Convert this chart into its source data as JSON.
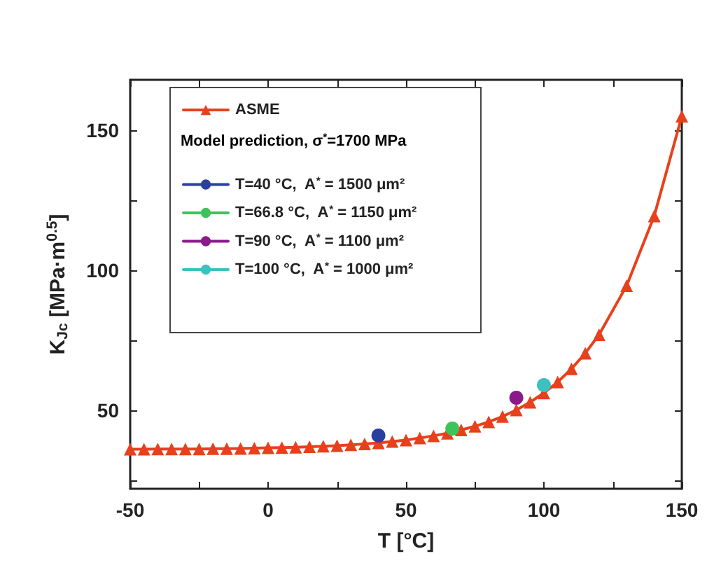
{
  "chart_data": {
    "type": "line",
    "xlabel": "T [°C]",
    "ylabel": "K$_{Jc}$ [MPa·m$^{0.5}$]",
    "legend_title": "Model prediction, σ$^{*}$=1700 MPa",
    "x": [
      -50,
      -45,
      -40,
      -35,
      -30,
      -25,
      -20,
      -15,
      -10,
      -5,
      0,
      5,
      10,
      15,
      20,
      25,
      30,
      35,
      40,
      45,
      50,
      55,
      60,
      65,
      70,
      75,
      80,
      85,
      90,
      95,
      100,
      105,
      110,
      115,
      120,
      130,
      140,
      150
    ],
    "series": [
      {
        "name": "ASME",
        "color": "#e8401c",
        "marker": "triangle",
        "values": [
          36.1,
          36.1,
          36.2,
          36.2,
          36.2,
          36.2,
          36.3,
          36.3,
          36.4,
          36.5,
          36.6,
          36.7,
          36.8,
          37.0,
          37.2,
          37.4,
          37.7,
          38.0,
          38.4,
          38.9,
          39.4,
          40.1,
          40.9,
          41.8,
          43.0,
          44.3,
          45.9,
          47.8,
          50.1,
          52.9,
          56.2,
          60.1,
          64.8,
          70.4,
          77.0,
          94.5,
          119.4,
          155.0
        ]
      },
      {
        "name": "T=40 °C,  A$^{*}$ = 1500 μm²",
        "color": "#2b3f9e",
        "marker": "circle",
        "x": [
          40
        ],
        "values": [
          41
        ]
      },
      {
        "name": "T=66.8 °C,  A$^{*}$ = 1150 μm²",
        "color": "#3cc45a",
        "marker": "circle",
        "x": [
          66.8
        ],
        "values": [
          43.5
        ]
      },
      {
        "name": "T=90 °C,  A$^{*}$ = 1100 μm²",
        "color": "#8a1a8a",
        "marker": "circle",
        "x": [
          90
        ],
        "values": [
          54.5
        ]
      },
      {
        "name": "T=100 °C,  A$^{*}$ = 1000 μm²",
        "color": "#3cc0c0",
        "marker": "circle",
        "x": [
          100
        ],
        "values": [
          59
        ]
      }
    ],
    "xlim": [
      -50,
      150
    ],
    "xticks": [
      -50,
      {
        "value": -25,
        "label": null
      },
      0,
      {
        "value": 25,
        "label": null
      },
      50,
      {
        "value": 75,
        "label": null
      },
      100,
      {
        "value": 125,
        "label": null
      },
      150
    ],
    "ylim": [
      22,
      168
    ],
    "yticks": [
      {
        "value": 25,
        "label": null
      },
      50,
      {
        "value": 75,
        "label": null
      },
      100,
      {
        "value": 125,
        "label": null
      },
      150
    ],
    "legend": "top left",
    "grid": false,
    "line_style": "solid"
  }
}
